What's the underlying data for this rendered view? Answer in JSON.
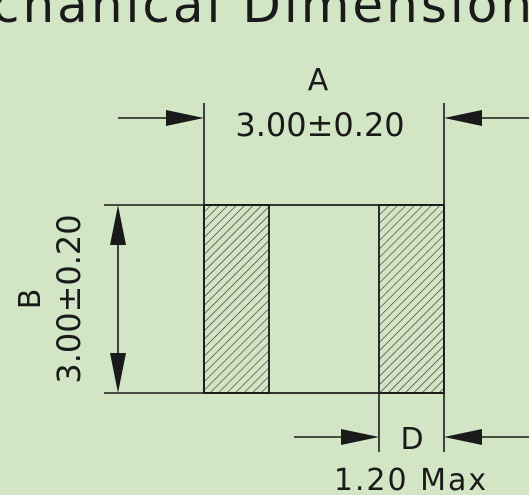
{
  "title": "chanical Dimension",
  "dimensions": {
    "A": {
      "letter": "A",
      "value": "3.00±0.20"
    },
    "B": {
      "letter": "B",
      "value": "3.00±0.20"
    },
    "D": {
      "letter": "D",
      "value": "1.20 Max"
    }
  },
  "colors": {
    "background": "#d2e6c5",
    "line": "#1a1a1a"
  }
}
